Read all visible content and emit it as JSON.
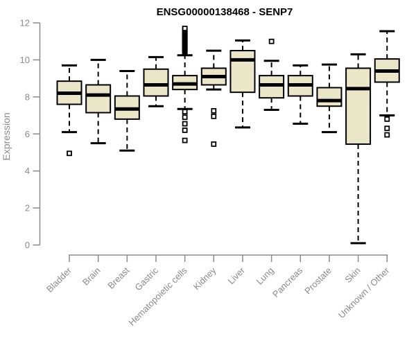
{
  "chart_data": {
    "type": "boxplot",
    "title": "ENSG00000138468 - SENP7",
    "ylabel": "Expression",
    "xlabel": "",
    "ylim": [
      0,
      12
    ],
    "yticks": [
      0,
      2,
      4,
      6,
      8,
      10,
      12
    ],
    "grid": false,
    "legend": "none",
    "categories": [
      "Bladder",
      "Brain",
      "Breast",
      "Gastric",
      "Hematopoietic cells",
      "Kidney",
      "Liver",
      "Lung",
      "Pancreas",
      "Prostate",
      "Skin",
      "Unknown / Other"
    ],
    "series": [
      {
        "name": "Bladder",
        "whisker_low": 6.1,
        "q1": 7.6,
        "median": 8.2,
        "q3": 8.85,
        "whisker_high": 9.7,
        "outliers": [
          4.95
        ]
      },
      {
        "name": "Brain",
        "whisker_low": 5.5,
        "q1": 7.15,
        "median": 8.1,
        "q3": 8.65,
        "whisker_high": 10.0,
        "outliers": []
      },
      {
        "name": "Breast",
        "whisker_low": 5.1,
        "q1": 6.8,
        "median": 7.35,
        "q3": 8.05,
        "whisker_high": 9.4,
        "outliers": []
      },
      {
        "name": "Gastric",
        "whisker_low": 7.5,
        "q1": 8.05,
        "median": 8.65,
        "q3": 9.5,
        "whisker_high": 10.15,
        "outliers": []
      },
      {
        "name": "Hematopoietic cells",
        "whisker_low": 7.35,
        "q1": 8.4,
        "median": 8.7,
        "q3": 9.15,
        "whisker_high": 10.25,
        "outliers": [
          7.2,
          6.9,
          6.55,
          6.2,
          5.65,
          10.4,
          10.45,
          10.5,
          10.55,
          10.6,
          10.65,
          10.7,
          10.75,
          10.8,
          10.85,
          10.9,
          10.95,
          11.0,
          11.05,
          11.1,
          11.15,
          11.2,
          11.25,
          11.3,
          11.35,
          11.4,
          11.45,
          11.5,
          11.55,
          11.6,
          11.65,
          11.7
        ]
      },
      {
        "name": "Kidney",
        "whisker_low": 8.4,
        "q1": 8.65,
        "median": 9.1,
        "q3": 9.55,
        "whisker_high": 10.5,
        "outliers": [
          7.25,
          6.95,
          5.45
        ]
      },
      {
        "name": "Liver",
        "whisker_low": 6.35,
        "q1": 8.25,
        "median": 10.0,
        "q3": 10.5,
        "whisker_high": 11.05,
        "outliers": []
      },
      {
        "name": "Lung",
        "whisker_low": 7.3,
        "q1": 7.95,
        "median": 8.65,
        "q3": 9.15,
        "whisker_high": 9.95,
        "outliers": [
          11.0
        ]
      },
      {
        "name": "Pancreas",
        "whisker_low": 6.55,
        "q1": 8.05,
        "median": 8.65,
        "q3": 9.15,
        "whisker_high": 9.7,
        "outliers": []
      },
      {
        "name": "Prostate",
        "whisker_low": 6.1,
        "q1": 7.5,
        "median": 7.8,
        "q3": 8.5,
        "whisker_high": 9.75,
        "outliers": []
      },
      {
        "name": "Skin",
        "whisker_low": 0.1,
        "q1": 5.45,
        "median": 8.45,
        "q3": 9.55,
        "whisker_high": 10.3,
        "outliers": []
      },
      {
        "name": "Unknown / Other",
        "whisker_low": 7.0,
        "q1": 8.8,
        "median": 9.4,
        "q3": 10.05,
        "whisker_high": 11.55,
        "outliers": [
          6.8,
          6.3,
          5.95
        ]
      }
    ],
    "colors": {
      "background": "#ffffff",
      "box_fill": "#ece6c8",
      "box_stroke": "#000000",
      "median": "#000000",
      "whisker": "#000000",
      "outlier_stroke": "#000000",
      "axis": "#8a8a8a",
      "tick_label": "#8a8a8a",
      "title": "#000000"
    }
  }
}
